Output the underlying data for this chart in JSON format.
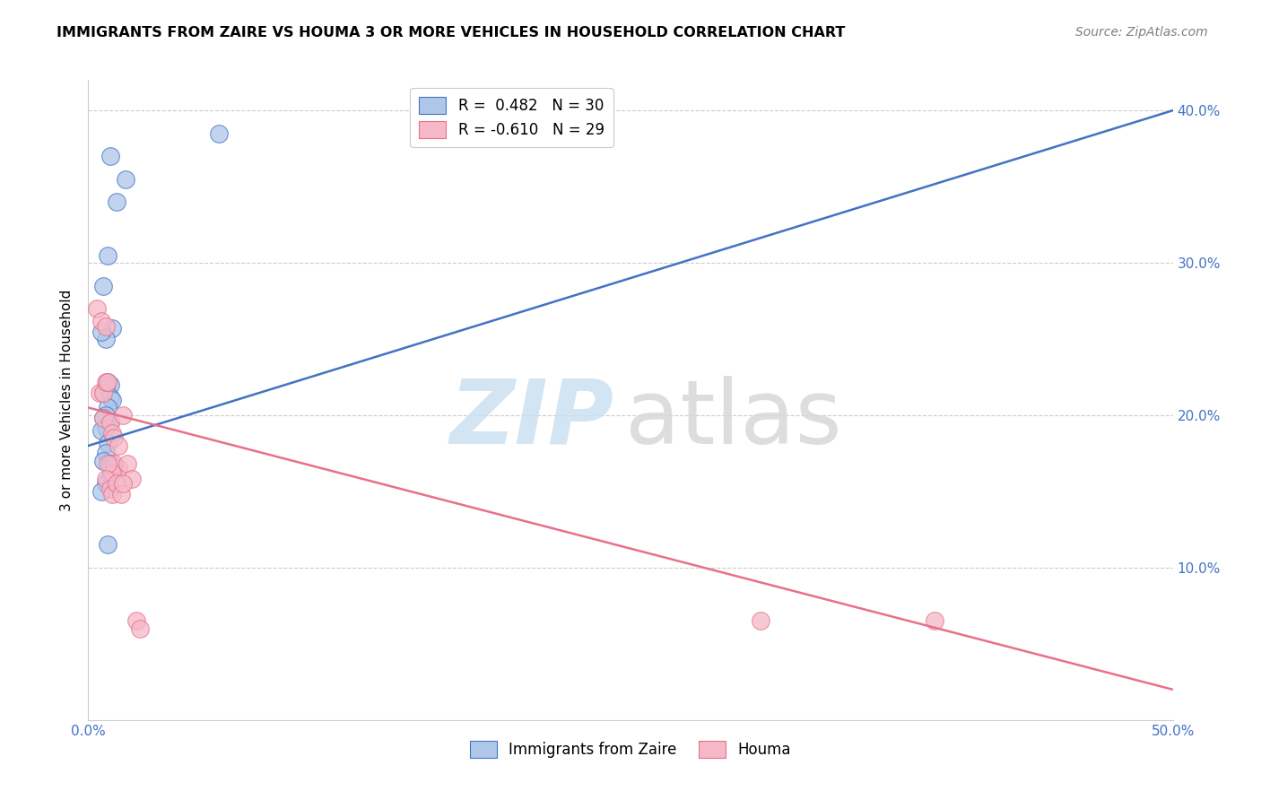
{
  "title": "IMMIGRANTS FROM ZAIRE VS HOUMA 3 OR MORE VEHICLES IN HOUSEHOLD CORRELATION CHART",
  "source": "Source: ZipAtlas.com",
  "ylabel": "3 or more Vehicles in Household",
  "xlim": [
    0.0,
    0.5
  ],
  "ylim": [
    0.0,
    0.42
  ],
  "xticks": [
    0.0,
    0.1,
    0.2,
    0.3,
    0.4,
    0.5
  ],
  "yticks": [
    0.0,
    0.1,
    0.2,
    0.3,
    0.4
  ],
  "xtick_labels": [
    "0.0%",
    "",
    "",
    "",
    "",
    "50.0%"
  ],
  "ytick_labels_right": [
    "",
    "10.0%",
    "20.0%",
    "30.0%",
    "40.0%"
  ],
  "legend_r1": "R =  0.482   N = 30",
  "legend_r2": "R = -0.610   N = 29",
  "blue_color": "#aec6e8",
  "pink_color": "#f5b8c8",
  "blue_line_color": "#4472c4",
  "pink_line_color": "#e8708a",
  "blue_line": [
    0.0,
    0.18,
    0.5,
    0.4
  ],
  "pink_line": [
    0.0,
    0.205,
    0.5,
    0.02
  ],
  "zaire_x": [
    0.01,
    0.017,
    0.013,
    0.009,
    0.007,
    0.011,
    0.008,
    0.006,
    0.009,
    0.01,
    0.008,
    0.007,
    0.01,
    0.011,
    0.009,
    0.008,
    0.007,
    0.01,
    0.008,
    0.006,
    0.009,
    0.008,
    0.007,
    0.01,
    0.012,
    0.01,
    0.008,
    0.006,
    0.009,
    0.06
  ],
  "zaire_y": [
    0.37,
    0.355,
    0.34,
    0.305,
    0.285,
    0.257,
    0.25,
    0.255,
    0.222,
    0.22,
    0.218,
    0.215,
    0.212,
    0.21,
    0.205,
    0.2,
    0.198,
    0.195,
    0.192,
    0.19,
    0.182,
    0.175,
    0.17,
    0.168,
    0.165,
    0.16,
    0.155,
    0.15,
    0.115,
    0.385
  ],
  "houma_x": [
    0.004,
    0.005,
    0.006,
    0.007,
    0.008,
    0.009,
    0.008,
    0.007,
    0.01,
    0.011,
    0.012,
    0.014,
    0.016,
    0.014,
    0.012,
    0.011,
    0.009,
    0.008,
    0.01,
    0.011,
    0.013,
    0.015,
    0.018,
    0.02,
    0.022,
    0.016,
    0.024,
    0.31,
    0.39
  ],
  "houma_y": [
    0.27,
    0.215,
    0.262,
    0.215,
    0.222,
    0.222,
    0.258,
    0.198,
    0.195,
    0.188,
    0.185,
    0.18,
    0.2,
    0.165,
    0.168,
    0.162,
    0.168,
    0.158,
    0.152,
    0.148,
    0.155,
    0.148,
    0.168,
    0.158,
    0.065,
    0.155,
    0.06,
    0.065,
    0.065
  ]
}
